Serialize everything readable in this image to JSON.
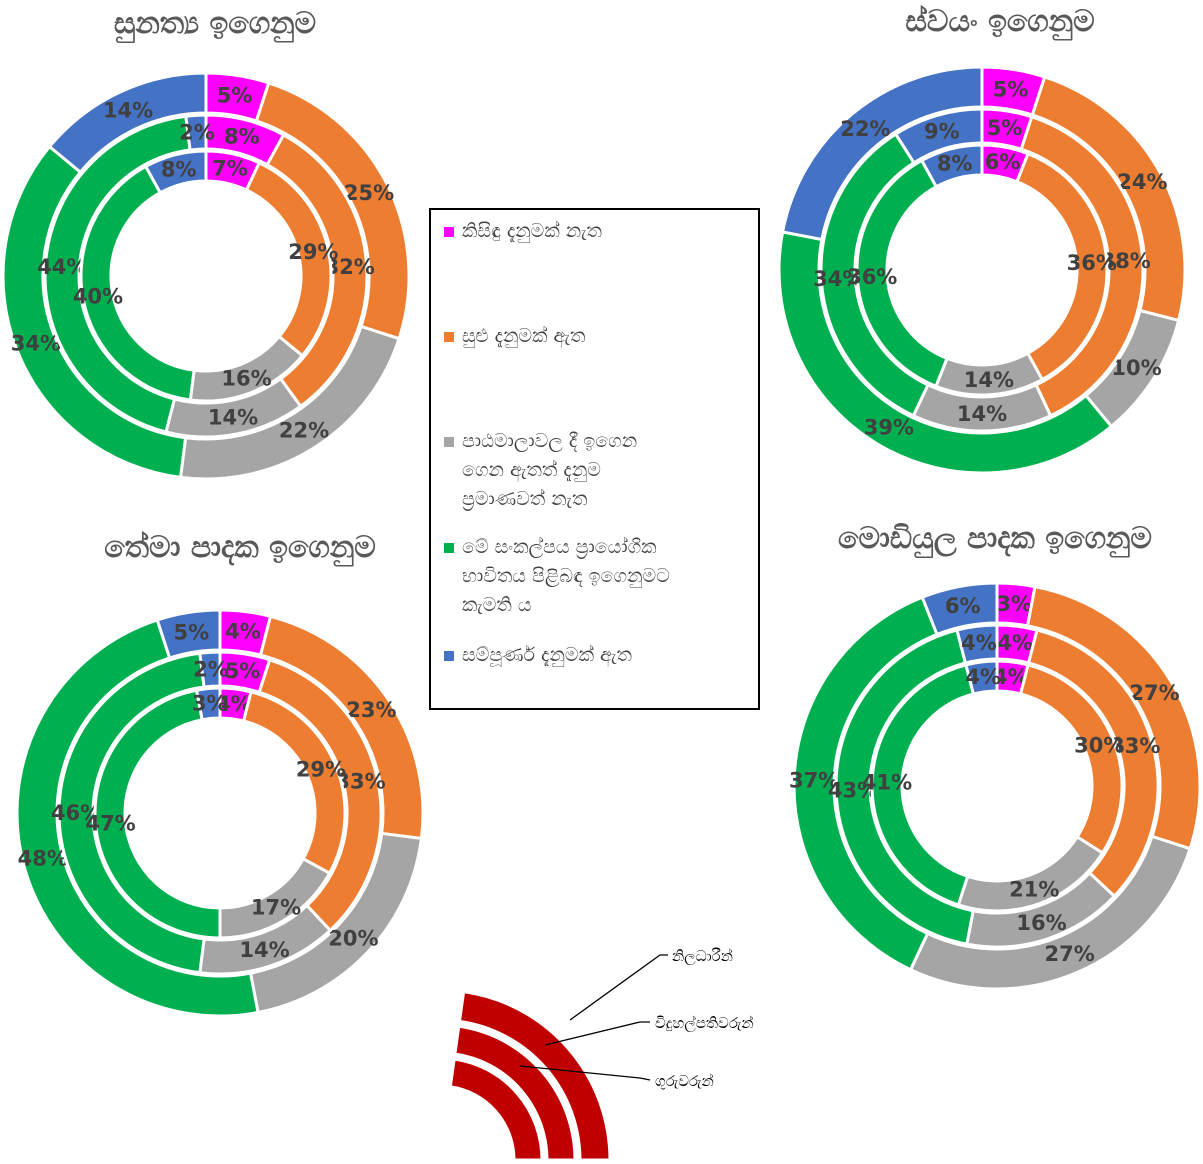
{
  "colors": {
    "no_knowledge": "#FF00FF",
    "little_knowledge": "#ED7D31",
    "not_enough": "#A5A5A5",
    "want_practical": "#00B050",
    "full_knowledge": "#4472C4",
    "ring_key": "#C00000"
  },
  "legend": [
    {
      "key": "no_knowledge",
      "lines": [
        "කිසිඳු දැනුමක් නැත"
      ]
    },
    {
      "key": "little_knowledge",
      "lines": [
        "සුළු දැනුමක් ඇත"
      ]
    },
    {
      "key": "not_enough",
      "lines": [
        "පාඨමාලාවල දී ඉගෙන",
        "ගෙන ඇතත් දැනුම",
        "ප්‍රමාණවත් නැත"
      ]
    },
    {
      "key": "want_practical",
      "lines": [
        "මේ සංකල්පය ප්‍රායෝගික",
        "භාවිතය පිළිබඳ ඉගෙනුමට",
        "කැමති ය"
      ]
    },
    {
      "key": "full_knowledge",
      "lines": [
        "සම්පූර්ණ දැනුමක් ඇත"
      ]
    }
  ],
  "ring_key": {
    "outer": "නිලධාරීන්",
    "middle": "විදුහල්පතිවරුන්",
    "inner": "ගුරුවරුන්"
  },
  "chart_data": [
    {
      "type": "donut",
      "title": "සුනත්‍ය ඉගෙනුම",
      "categories": [
        "no_knowledge",
        "little_knowledge",
        "not_enough",
        "want_practical",
        "full_knowledge"
      ],
      "series": [
        {
          "name": "නිලධාරීන්",
          "values": [
            5,
            25,
            22,
            34,
            14
          ]
        },
        {
          "name": "විදුහල්පතිවරුන්",
          "values": [
            8,
            32,
            14,
            44,
            2
          ]
        },
        {
          "name": "ගුරුවරුන්",
          "values": [
            7,
            29,
            16,
            40,
            8
          ]
        }
      ]
    },
    {
      "type": "donut",
      "title": "ස්වයං ඉගෙනුම",
      "categories": [
        "no_knowledge",
        "little_knowledge",
        "not_enough",
        "want_practical",
        "full_knowledge"
      ],
      "series": [
        {
          "name": "නිලධාරීන්",
          "values": [
            5,
            24,
            10,
            39,
            22
          ]
        },
        {
          "name": "විදුහල්පතිවරුන්",
          "values": [
            5,
            38,
            14,
            34,
            9
          ]
        },
        {
          "name": "ගුරුවරුන්",
          "values": [
            6,
            36,
            14,
            36,
            8
          ]
        }
      ]
    },
    {
      "type": "donut",
      "title": "තේමා පාදක ඉගෙනුම",
      "categories": [
        "no_knowledge",
        "little_knowledge",
        "not_enough",
        "want_practical",
        "full_knowledge"
      ],
      "series": [
        {
          "name": "නිලධාරීන්",
          "values": [
            4,
            23,
            20,
            48,
            5
          ]
        },
        {
          "name": "විදුහල්පතිවරුන්",
          "values": [
            5,
            33,
            14,
            46,
            2
          ]
        },
        {
          "name": "ගුරුවරුන්",
          "values": [
            4,
            29,
            17,
            47,
            3
          ]
        }
      ]
    },
    {
      "type": "donut",
      "title": "මොඩියුල පාදක ඉගෙනුම",
      "categories": [
        "no_knowledge",
        "little_knowledge",
        "not_enough",
        "want_practical",
        "full_knowledge"
      ],
      "series": [
        {
          "name": "නිලධාරීන්",
          "values": [
            3,
            27,
            27,
            37,
            6
          ]
        },
        {
          "name": "විදුහල්පතිවරුන්",
          "values": [
            4,
            33,
            16,
            43,
            4
          ]
        },
        {
          "name": "ගුරුවරුන්",
          "values": [
            4,
            30,
            21,
            41,
            4
          ]
        }
      ]
    }
  ]
}
